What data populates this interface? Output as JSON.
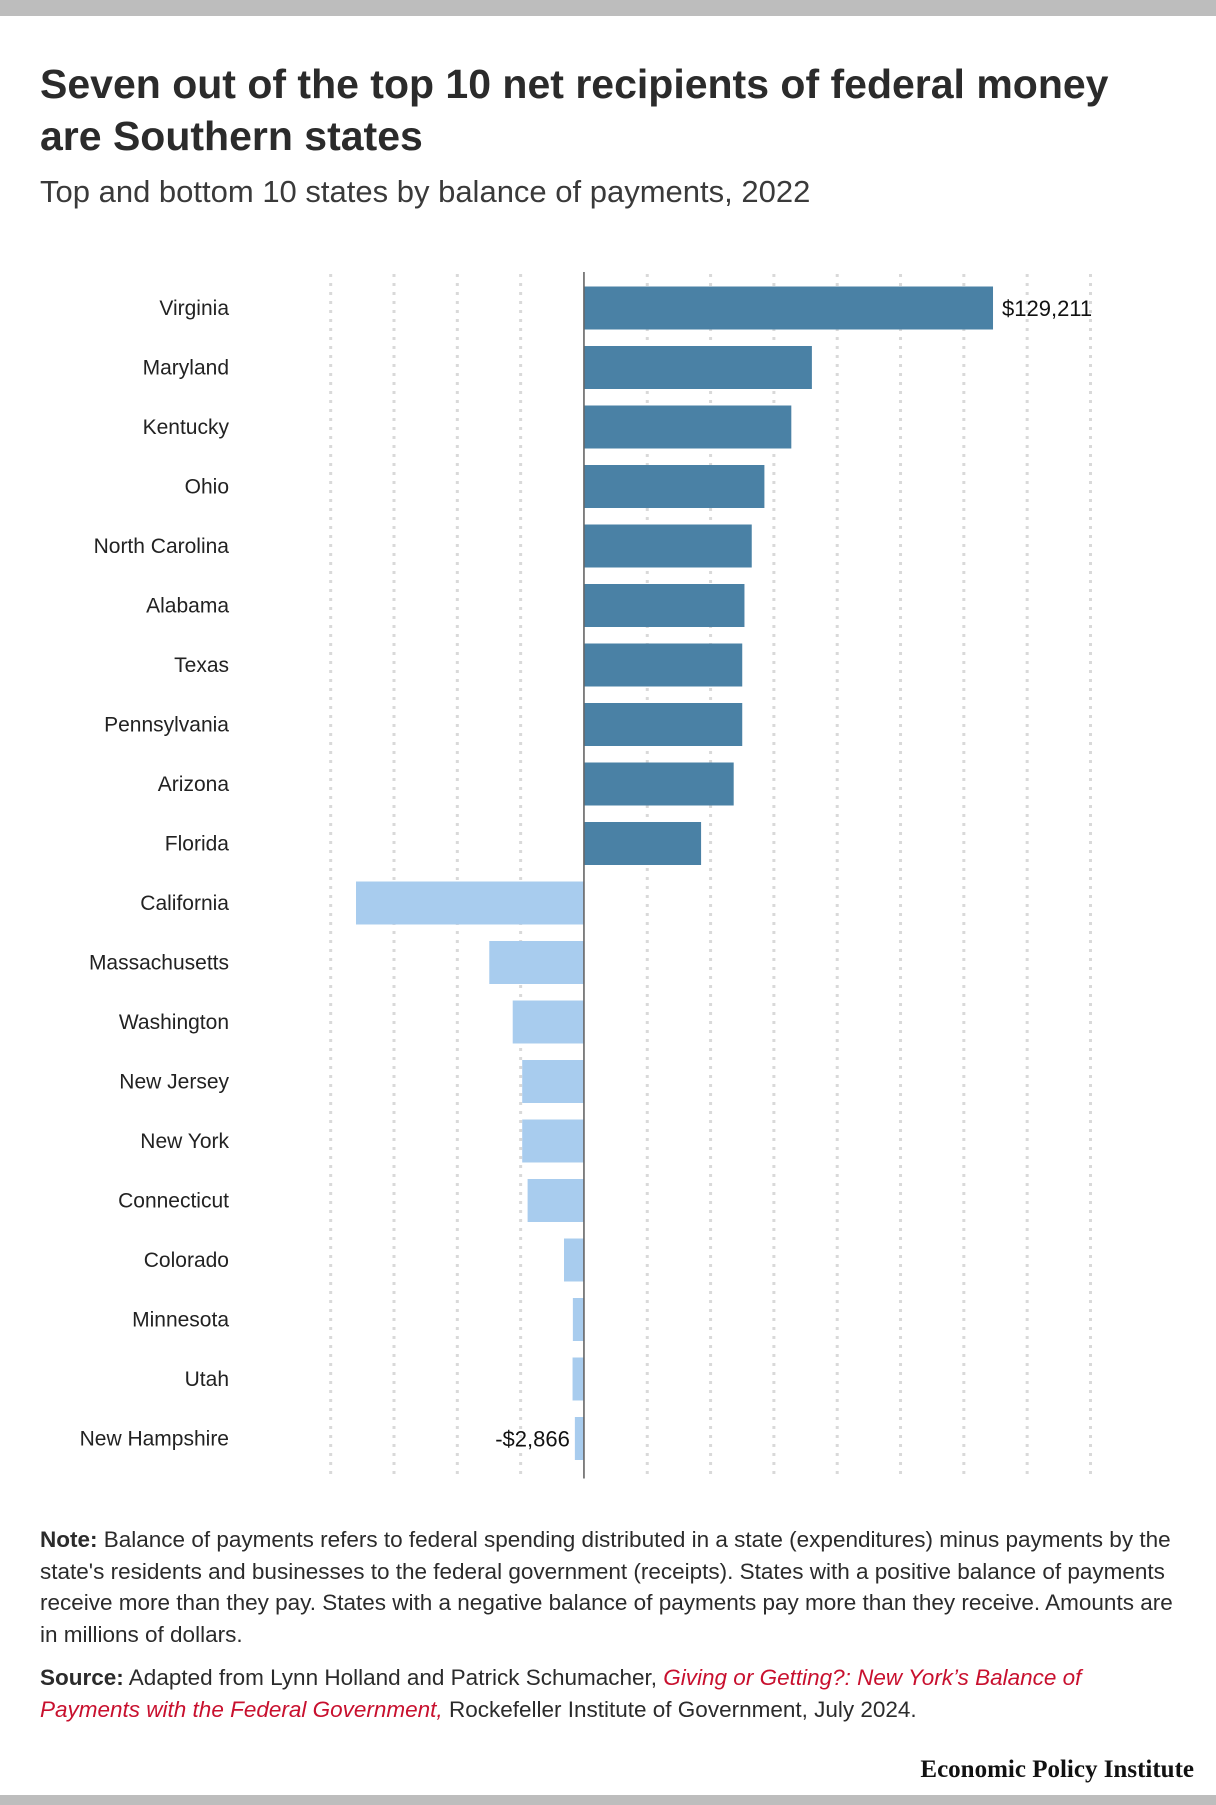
{
  "title": "Seven out of the top 10 net recipients of federal money are Southern states",
  "subtitle": "Top and bottom 10 states by balance of payments, 2022",
  "note": {
    "label": "Note:",
    "text": "Balance of payments refers to federal spending distributed in a state (expenditures) minus payments by the state's residents and businesses to the federal government (receipts). States with a positive balance of payments receive more than they pay. States with a negative balance of payments pay more than they receive. Amounts are in millions of dollars."
  },
  "source": {
    "label": "Source:",
    "text_before": "Adapted from Lynn Holland and Patrick Schumacher,",
    "link_text": "Giving or Getting?: New York’s Balance of Payments with the Federal Government,",
    "text_after": "Rockefeller Institute of Government, July 2024."
  },
  "brand": "Economic Policy Institute",
  "colors": {
    "positive": "#4a81a5",
    "negative": "#a8ccee",
    "grid": "#d9d9d9",
    "axis": "#666666",
    "source_link": "#c8102e"
  },
  "chart_data": {
    "type": "bar",
    "orientation": "horizontal",
    "title": "",
    "xlabel": "",
    "ylabel": "",
    "units": "millions of dollars",
    "xlim": [
      -72000,
      151000
    ],
    "grid": true,
    "categories": [
      "Virginia",
      "Maryland",
      "Kentucky",
      "Ohio",
      "North Carolina",
      "Alabama",
      "Texas",
      "Pennsylvania",
      "Arizona",
      "Florida",
      "California",
      "Massachusetts",
      "Washington",
      "New Jersey",
      "New York",
      "Connecticut",
      "Colorado",
      "Minnesota",
      "Utah",
      "New Hampshire"
    ],
    "values": [
      129211,
      72000,
      65500,
      57000,
      53000,
      50700,
      50000,
      50000,
      47300,
      37000,
      -72000,
      -29900,
      -22500,
      -19500,
      -19500,
      -17800,
      -6300,
      -3500,
      -3600,
      -2866
    ],
    "data_labels": [
      {
        "category": "Virginia",
        "text": "$129,211"
      },
      {
        "category": "New Hampshire",
        "text": "-$2,866"
      }
    ]
  }
}
